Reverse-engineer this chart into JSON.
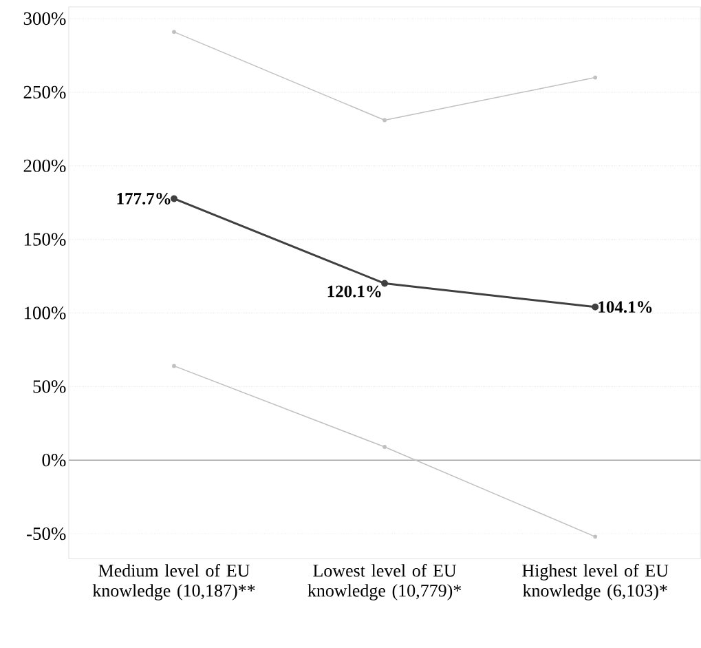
{
  "chart_data": {
    "type": "line",
    "categories": [
      "Medium level of EU knowledge (10,187)**",
      "Lowest level of EU knowledge (10,779)*",
      "Highest level of EU knowledge (6,103)*"
    ],
    "series": [
      {
        "color": "#c0c0c0",
        "values": [
          291,
          231,
          260
        ]
      },
      {
        "color": "#404040",
        "values": [
          177.7,
          120.1,
          104.1
        ],
        "value_labels": [
          "177.7%",
          "120.1%",
          "104.1%"
        ]
      },
      {
        "color": "#c0c0c0",
        "values": [
          64,
          9,
          -52
        ]
      }
    ],
    "ylim": [
      -67,
      308
    ],
    "yticks": [
      {
        "value": -50,
        "label": "-50%"
      },
      {
        "value": 0,
        "label": "0%"
      },
      {
        "value": 50,
        "label": "50%"
      },
      {
        "value": 100,
        "label": "100%"
      },
      {
        "value": 150,
        "label": "150%"
      },
      {
        "value": 200,
        "label": "200%"
      },
      {
        "value": 250,
        "label": "250%"
      },
      {
        "value": 300,
        "label": "300%"
      }
    ],
    "ref_lines": [
      {
        "axis": "y",
        "value": 0,
        "color": "#a6a6a6"
      }
    ],
    "grid": "y",
    "marker": "circle",
    "line_style": "solid"
  }
}
